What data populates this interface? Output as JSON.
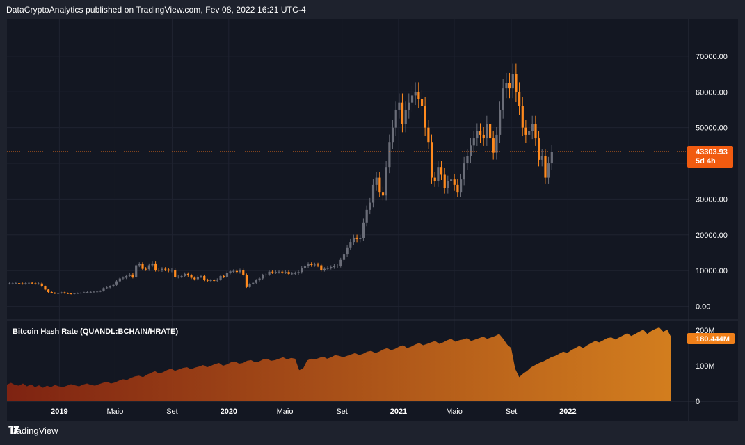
{
  "header": {
    "published": "DataCryptoAnalytics published on TradingView.com, Fev 08, 2022 16:21 UTC-4"
  },
  "footer": {
    "brand": "TradingView"
  },
  "colors": {
    "background": "#131722",
    "page": "#1e222d",
    "up": "#6a6d78",
    "down": "#ff8a1e",
    "price_line": "#f0701a",
    "badge": "#f15b10",
    "hash_fill_top": "#e8891e",
    "hash_fill_bottom": "#8a2410"
  },
  "chart_data": [
    {
      "type": "candlestick",
      "title": "",
      "ylim": [
        -3000,
        80000
      ],
      "y_ticks": [
        "70000.00",
        "60000.00",
        "50000.00",
        "40000.00",
        "30000.00",
        "20000.00",
        "10000.00",
        "0.00"
      ],
      "x_ticks": [
        {
          "label": "2019",
          "bold": true,
          "x": "2019-01-01"
        },
        {
          "label": "Maio",
          "bold": false,
          "x": "2019-05-01"
        },
        {
          "label": "Set",
          "bold": false,
          "x": "2019-09-01"
        },
        {
          "label": "2020",
          "bold": true,
          "x": "2020-01-01"
        },
        {
          "label": "Maio",
          "bold": false,
          "x": "2020-05-01"
        },
        {
          "label": "Set",
          "bold": false,
          "x": "2020-09-01"
        },
        {
          "label": "2021",
          "bold": true,
          "x": "2021-01-01"
        },
        {
          "label": "Maio",
          "bold": false,
          "x": "2021-05-01"
        },
        {
          "label": "Set",
          "bold": false,
          "x": "2021-09-01"
        },
        {
          "label": "2022",
          "bold": true,
          "x": "2022-01-01"
        }
      ],
      "last_price": 43303.93,
      "last_price_label": "43303.93",
      "countdown_label": "5d 4h",
      "close_series": [
        6400,
        6450,
        6500,
        6400,
        6350,
        6500,
        6600,
        6450,
        6350,
        6400,
        5600,
        4700,
        4000,
        3800,
        3600,
        3700,
        3900,
        3700,
        3600,
        3500,
        3650,
        3700,
        3800,
        3900,
        4000,
        4050,
        4100,
        4150,
        4300,
        5100,
        5300,
        5600,
        6000,
        7000,
        7800,
        8000,
        8500,
        8900,
        8200,
        11500,
        11800,
        10500,
        10400,
        11500,
        12000,
        10200,
        10100,
        10500,
        10300,
        10000,
        10200,
        8200,
        8300,
        8500,
        9100,
        8700,
        8000,
        7600,
        8300,
        8500,
        7400,
        7200,
        7300,
        7200,
        7500,
        8500,
        8300,
        9400,
        9800,
        9900,
        9600,
        10100,
        8800,
        5400,
        6300,
        6600,
        7300,
        7800,
        8700,
        8900,
        9700,
        9500,
        9600,
        9700,
        9500,
        9600,
        9100,
        9200,
        9300,
        9600,
        10800,
        11200,
        11800,
        11600,
        11700,
        11500,
        10200,
        10500,
        10800,
        11000,
        11300,
        11400,
        13000,
        14500,
        16500,
        18000,
        19200,
        18800,
        19100,
        23500,
        27000,
        29000,
        34000,
        36000,
        32000,
        31000,
        39000,
        46000,
        50000,
        55000,
        57000,
        51000,
        55000,
        57000,
        59000,
        60000,
        58000,
        56000,
        50000,
        46000,
        36000,
        35000,
        39000,
        37000,
        33000,
        35000,
        35500,
        34000,
        32000,
        35500,
        40000,
        42000,
        45000,
        47000,
        49000,
        48000,
        47000,
        51000,
        47000,
        43000,
        48000,
        55000,
        61000,
        62500,
        61000,
        65000,
        60000,
        56000,
        50000,
        48000,
        49000,
        51000,
        47000,
        41000,
        42000,
        36000,
        40000,
        43304
      ],
      "hash_series": {
        "name": "Bitcoin Hash Rate (QUANDL:BCHAIN/HRATE)",
        "unit_ticks": [
          "200M",
          "100M",
          "0"
        ],
        "ylim": [
          0,
          210000000
        ],
        "current_label": "180.444M",
        "values": [
          47,
          52,
          46,
          44,
          50,
          42,
          48,
          40,
          45,
          38,
          44,
          40,
          46,
          42,
          40,
          44,
          48,
          45,
          42,
          47,
          50,
          46,
          44,
          48,
          52,
          55,
          50,
          53,
          58,
          62,
          60,
          66,
          70,
          72,
          68,
          75,
          80,
          85,
          78,
          82,
          88,
          92,
          86,
          90,
          94,
          96,
          90,
          95,
          98,
          102,
          96,
          100,
          105,
          108,
          100,
          104,
          110,
          112,
          106,
          108,
          114,
          116,
          110,
          112,
          118,
          120,
          114,
          116,
          120,
          124,
          118,
          122,
          120,
          88,
          92,
          115,
          120,
          118,
          122,
          126,
          120,
          124,
          130,
          128,
          124,
          128,
          132,
          136,
          130,
          134,
          140,
          142,
          136,
          140,
          146,
          150,
          144,
          148,
          154,
          158,
          150,
          154,
          160,
          164,
          158,
          162,
          166,
          170,
          162,
          166,
          172,
          176,
          168,
          172,
          174,
          178,
          170,
          174,
          178,
          182,
          176,
          180,
          184,
          190,
          176,
          160,
          150,
          92,
          68,
          78,
          86,
          96,
          102,
          108,
          112,
          118,
          124,
          128,
          134,
          140,
          136,
          144,
          150,
          156,
          150,
          158,
          164,
          170,
          166,
          172,
          178,
          180,
          174,
          180,
          186,
          192,
          184,
          190,
          196,
          202,
          190,
          198,
          204,
          208,
          196,
          202,
          180
        ]
      }
    }
  ]
}
